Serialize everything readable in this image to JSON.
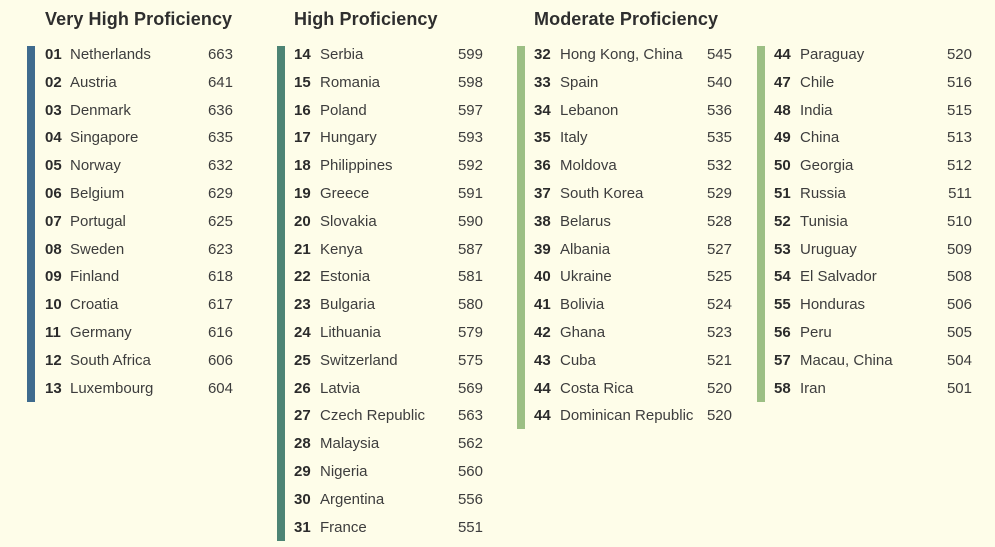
{
  "colors": {
    "background": "#fefde9",
    "very_high": "#3f6b8e",
    "high": "#4d8474",
    "moderate": "#9cbf84"
  },
  "groups": {
    "very_high": {
      "title": "Very High Proficiency"
    },
    "high": {
      "title": "High Proficiency"
    },
    "moderate": {
      "title": "Moderate Proficiency"
    }
  },
  "columns": [
    {
      "group": "very_high",
      "rows": [
        {
          "rank": "01",
          "country": "Netherlands",
          "score": "663"
        },
        {
          "rank": "02",
          "country": "Austria",
          "score": "641"
        },
        {
          "rank": "03",
          "country": "Denmark",
          "score": "636"
        },
        {
          "rank": "04",
          "country": "Singapore",
          "score": "635"
        },
        {
          "rank": "05",
          "country": "Norway",
          "score": "632"
        },
        {
          "rank": "06",
          "country": "Belgium",
          "score": "629"
        },
        {
          "rank": "07",
          "country": "Portugal",
          "score": "625"
        },
        {
          "rank": "08",
          "country": "Sweden",
          "score": "623"
        },
        {
          "rank": "09",
          "country": "Finland",
          "score": "618"
        },
        {
          "rank": "10",
          "country": "Croatia",
          "score": "617"
        },
        {
          "rank": "11",
          "country": "Germany",
          "score": "616"
        },
        {
          "rank": "12",
          "country": "South Africa",
          "score": "606"
        },
        {
          "rank": "13",
          "country": "Luxembourg",
          "score": "604"
        }
      ]
    },
    {
      "group": "high",
      "rows": [
        {
          "rank": "14",
          "country": "Serbia",
          "score": "599"
        },
        {
          "rank": "15",
          "country": "Romania",
          "score": "598"
        },
        {
          "rank": "16",
          "country": "Poland",
          "score": "597"
        },
        {
          "rank": "17",
          "country": "Hungary",
          "score": "593"
        },
        {
          "rank": "18",
          "country": "Philippines",
          "score": "592"
        },
        {
          "rank": "19",
          "country": "Greece",
          "score": "591"
        },
        {
          "rank": "20",
          "country": "Slovakia",
          "score": "590"
        },
        {
          "rank": "21",
          "country": "Kenya",
          "score": "587"
        },
        {
          "rank": "22",
          "country": "Estonia",
          "score": "581"
        },
        {
          "rank": "23",
          "country": "Bulgaria",
          "score": "580"
        },
        {
          "rank": "24",
          "country": "Lithuania",
          "score": "579"
        },
        {
          "rank": "25",
          "country": "Switzerland",
          "score": "575"
        },
        {
          "rank": "26",
          "country": "Latvia",
          "score": "569"
        },
        {
          "rank": "27",
          "country": "Czech Republic",
          "score": "563"
        },
        {
          "rank": "28",
          "country": "Malaysia",
          "score": "562"
        },
        {
          "rank": "29",
          "country": "Nigeria",
          "score": "560"
        },
        {
          "rank": "30",
          "country": "Argentina",
          "score": "556"
        },
        {
          "rank": "31",
          "country": "France",
          "score": "551"
        }
      ]
    },
    {
      "group": "moderate",
      "rows": [
        {
          "rank": "32",
          "country": "Hong Kong, China",
          "score": "545"
        },
        {
          "rank": "33",
          "country": "Spain",
          "score": "540"
        },
        {
          "rank": "34",
          "country": "Lebanon",
          "score": "536"
        },
        {
          "rank": "35",
          "country": "Italy",
          "score": "535"
        },
        {
          "rank": "36",
          "country": "Moldova",
          "score": "532"
        },
        {
          "rank": "37",
          "country": "South Korea",
          "score": "529"
        },
        {
          "rank": "38",
          "country": "Belarus",
          "score": "528"
        },
        {
          "rank": "39",
          "country": "Albania",
          "score": "527"
        },
        {
          "rank": "40",
          "country": "Ukraine",
          "score": "525"
        },
        {
          "rank": "41",
          "country": "Bolivia",
          "score": "524"
        },
        {
          "rank": "42",
          "country": "Ghana",
          "score": "523"
        },
        {
          "rank": "43",
          "country": "Cuba",
          "score": "521"
        },
        {
          "rank": "44",
          "country": "Costa Rica",
          "score": "520"
        },
        {
          "rank": "44",
          "country": "Dominican Republic",
          "score": "520"
        }
      ]
    },
    {
      "group": "moderate",
      "rows": [
        {
          "rank": "44",
          "country": "Paraguay",
          "score": "520"
        },
        {
          "rank": "47",
          "country": "Chile",
          "score": "516"
        },
        {
          "rank": "48",
          "country": "India",
          "score": "515"
        },
        {
          "rank": "49",
          "country": "China",
          "score": "513"
        },
        {
          "rank": "50",
          "country": "Georgia",
          "score": "512"
        },
        {
          "rank": "51",
          "country": "Russia",
          "score": "511"
        },
        {
          "rank": "52",
          "country": "Tunisia",
          "score": "510"
        },
        {
          "rank": "53",
          "country": "Uruguay",
          "score": "509"
        },
        {
          "rank": "54",
          "country": "El Salvador",
          "score": "508"
        },
        {
          "rank": "55",
          "country": "Honduras",
          "score": "506"
        },
        {
          "rank": "56",
          "country": "Peru",
          "score": "505"
        },
        {
          "rank": "57",
          "country": "Macau, China",
          "score": "504"
        },
        {
          "rank": "58",
          "country": "Iran",
          "score": "501"
        }
      ]
    }
  ]
}
